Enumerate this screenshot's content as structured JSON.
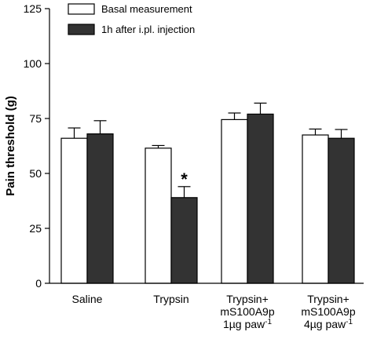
{
  "chart_data": {
    "type": "bar",
    "ylabel": "Pain threshold (g)",
    "ylim": [
      0,
      125
    ],
    "yticks": [
      0,
      25,
      50,
      75,
      100,
      125
    ],
    "categories": [
      {
        "lines": [
          "Saline"
        ]
      },
      {
        "lines": [
          "Trypsin"
        ]
      },
      {
        "lines": [
          "Trypsin+",
          "mS100A9p",
          "1µg paw",
          "-1"
        ]
      },
      {
        "lines": [
          "Trypsin+",
          "mS100A9p",
          "4µg paw",
          "-1"
        ]
      }
    ],
    "series": [
      {
        "name": "Basal measurement",
        "color": "#ffffff",
        "values": [
          66,
          61.5,
          74.5,
          67.5
        ],
        "errors": [
          4.7,
          1.2,
          3.0,
          2.7
        ]
      },
      {
        "name": "1h after i.pl. injection",
        "color": "#333333",
        "values": [
          68,
          39,
          77,
          66
        ],
        "errors": [
          6.0,
          5.0,
          5.0,
          4.0
        ]
      }
    ],
    "annotations": [
      {
        "text": "*",
        "category_index": 1,
        "series_index": 1
      }
    ],
    "legend_position": "top-left"
  }
}
